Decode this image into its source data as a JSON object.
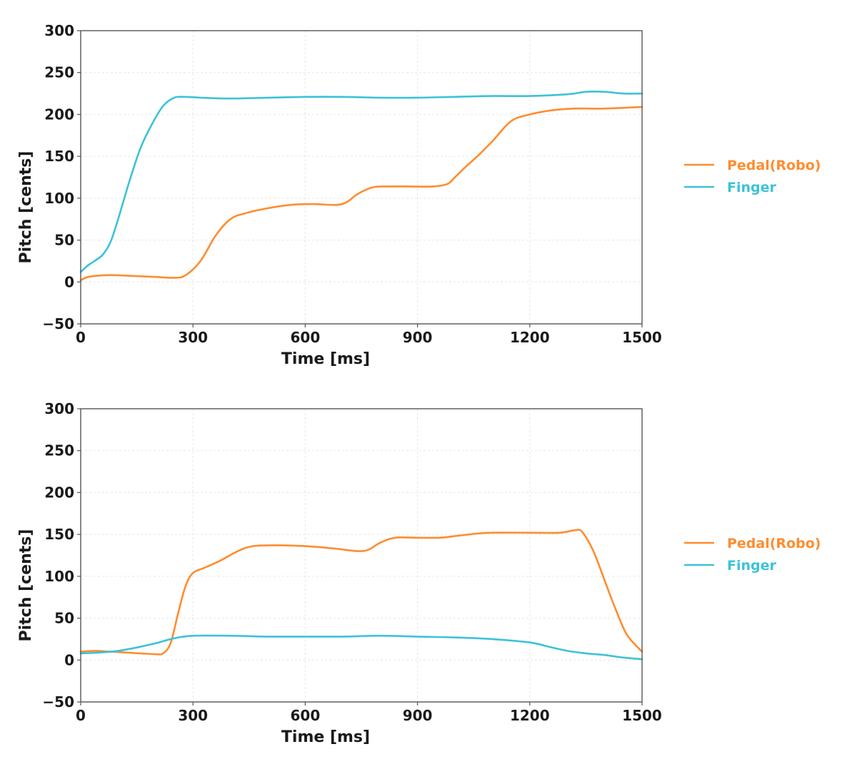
{
  "chart_data": [
    {
      "type": "line",
      "xlabel": "Time [ms]",
      "ylabel": "Pitch [cents]",
      "xlim": [
        0,
        1500
      ],
      "ylim": [
        -50,
        300
      ],
      "xticks": [
        0,
        300,
        600,
        900,
        1200,
        1500
      ],
      "yticks": [
        -50,
        0,
        50,
        100,
        150,
        200,
        250,
        300
      ],
      "xtick_labels": [
        "0",
        "300",
        "600",
        "900",
        "1200",
        "1500"
      ],
      "ytick_labels": [
        "−50",
        "0",
        "50",
        "100",
        "150",
        "200",
        "250",
        "300"
      ],
      "grid": true,
      "legend_position": "right",
      "series": [
        {
          "name": "Pedal(Robo)",
          "color": "#ff8c2f",
          "x": [
            0,
            20,
            60,
            100,
            150,
            200,
            250,
            280,
            320,
            360,
            400,
            440,
            500,
            560,
            620,
            680,
            710,
            740,
            780,
            820,
            880,
            940,
            980,
            1000,
            1030,
            1060,
            1100,
            1150,
            1200,
            1260,
            1320,
            1400,
            1500
          ],
          "y": [
            2,
            6,
            8,
            8,
            7,
            6,
            5,
            8,
            25,
            55,
            75,
            82,
            88,
            92,
            93,
            92,
            95,
            105,
            113,
            114,
            114,
            114,
            117,
            125,
            138,
            150,
            168,
            192,
            200,
            205,
            207,
            207,
            209
          ]
        },
        {
          "name": "Finger",
          "color": "#3cc2d8",
          "x": [
            0,
            20,
            40,
            60,
            80,
            100,
            130,
            160,
            190,
            220,
            250,
            280,
            320,
            400,
            500,
            600,
            700,
            800,
            900,
            1000,
            1100,
            1200,
            1300,
            1350,
            1400,
            1450,
            1500
          ],
          "y": [
            12,
            20,
            26,
            33,
            48,
            75,
            120,
            160,
            188,
            210,
            220,
            221,
            220,
            219,
            220,
            221,
            221,
            220,
            220,
            221,
            222,
            222,
            224,
            227,
            227,
            225,
            225
          ]
        }
      ]
    },
    {
      "type": "line",
      "xlabel": "Time [ms]",
      "ylabel": "Pitch [cents]",
      "xlim": [
        0,
        1500
      ],
      "ylim": [
        -50,
        300
      ],
      "xticks": [
        0,
        300,
        600,
        900,
        1200,
        1500
      ],
      "yticks": [
        -50,
        0,
        50,
        100,
        150,
        200,
        250,
        300
      ],
      "xtick_labels": [
        "0",
        "300",
        "600",
        "900",
        "1200",
        "1500"
      ],
      "ytick_labels": [
        "−50",
        "0",
        "50",
        "100",
        "150",
        "200",
        "250",
        "300"
      ],
      "grid": true,
      "legend_position": "right",
      "series": [
        {
          "name": "Pedal(Robo)",
          "color": "#ff8c2f",
          "x": [
            0,
            40,
            80,
            120,
            160,
            200,
            220,
            240,
            260,
            280,
            300,
            330,
            370,
            420,
            460,
            520,
            600,
            680,
            740,
            770,
            800,
            840,
            900,
            960,
            1000,
            1060,
            1100,
            1200,
            1280,
            1320,
            1340,
            1370,
            1400,
            1430,
            1460,
            1500
          ],
          "y": [
            10,
            11,
            10,
            9,
            8,
            7,
            8,
            20,
            55,
            88,
            104,
            110,
            118,
            130,
            136,
            137,
            136,
            133,
            130,
            132,
            140,
            146,
            146,
            146,
            148,
            151,
            152,
            152,
            152,
            155,
            153,
            130,
            95,
            60,
            30,
            10
          ]
        },
        {
          "name": "Finger",
          "color": "#3cc2d8",
          "x": [
            0,
            50,
            100,
            150,
            200,
            250,
            300,
            400,
            500,
            600,
            700,
            800,
            900,
            1000,
            1100,
            1200,
            1250,
            1300,
            1350,
            1400,
            1450,
            1500
          ],
          "y": [
            8,
            9,
            11,
            15,
            20,
            26,
            29,
            29,
            28,
            28,
            28,
            29,
            28,
            27,
            25,
            21,
            16,
            11,
            8,
            6,
            3,
            1
          ]
        }
      ]
    }
  ]
}
